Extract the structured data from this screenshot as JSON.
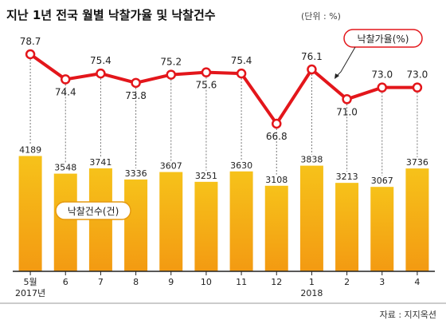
{
  "title": "지난 1년 전국 월별 낙찰가율 및 낙찰건수",
  "unit_note": "(단위 : %)",
  "source": "자료 : 지지옥션",
  "colors": {
    "bar_top": "#f6c21a",
    "bar_bottom": "#f39a12",
    "line": "#e3161b",
    "baseline": "#222222",
    "divider": "#999999"
  },
  "chart_data": {
    "type": "bar+line",
    "categories": [
      "5월",
      "6",
      "7",
      "8",
      "9",
      "10",
      "11",
      "12",
      "1",
      "2",
      "3",
      "4"
    ],
    "year_labels": [
      "2017년",
      "",
      "",
      "",
      "",
      "",
      "",
      "",
      "2018",
      "",
      "",
      ""
    ],
    "series": [
      {
        "name": "낙찰가율(%)",
        "type": "line",
        "values": [
          78.7,
          74.4,
          75.4,
          73.8,
          75.2,
          75.6,
          75.4,
          66.8,
          76.1,
          71.0,
          73.0,
          73.0
        ],
        "labels": [
          "78.7",
          "74.4",
          "75.4",
          "73.8",
          "75.2",
          "75.6",
          "75.4",
          "66.8",
          "76.1",
          "71.0",
          "73.0",
          "73.0"
        ]
      },
      {
        "name": "낙찰건수(건)",
        "type": "bar",
        "values": [
          4189,
          3548,
          3741,
          3336,
          3607,
          3251,
          3630,
          3108,
          3838,
          3213,
          3067,
          3736
        ],
        "labels": [
          "4189",
          "3548",
          "3741",
          "3336",
          "3607",
          "3251",
          "3630",
          "3108",
          "3838",
          "3213",
          "3067",
          "3736"
        ]
      }
    ],
    "legend_position": "top-right (line), lower-left (bars)",
    "grid": false
  }
}
